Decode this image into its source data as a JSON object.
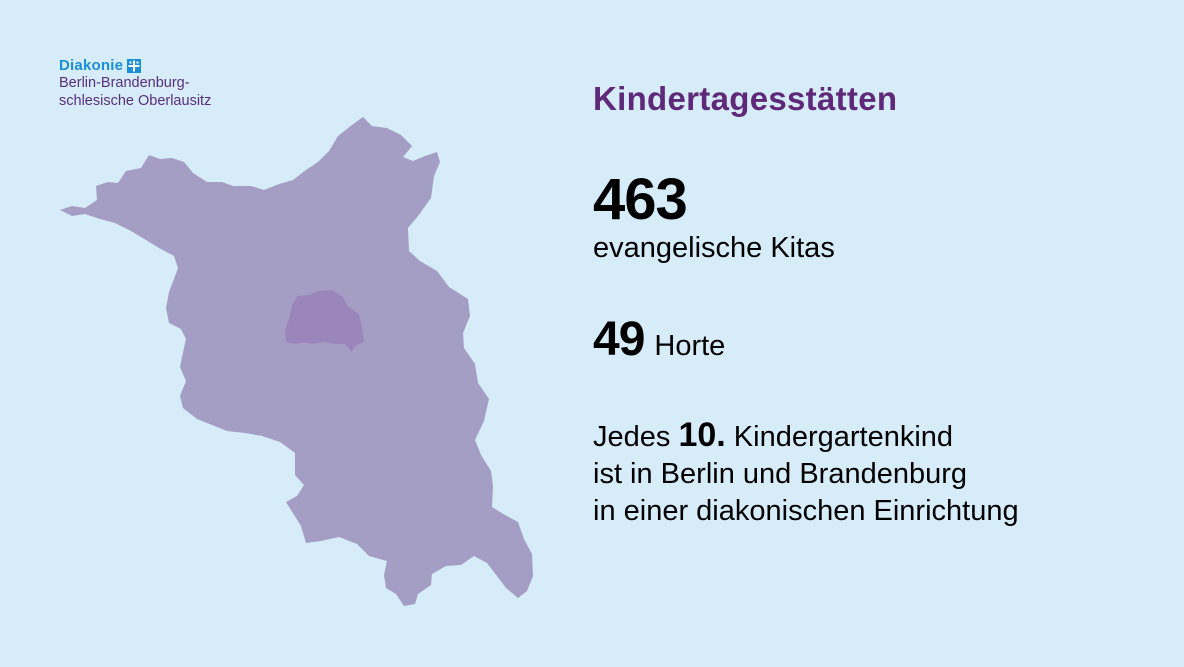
{
  "logo": {
    "brand": "Diakonie",
    "line1": "Berlin-Brandenburg-",
    "line2": "schlesische Oberlausitz",
    "brand_color": "#1a8fd6",
    "sub_color": "#5a2e7e"
  },
  "map": {
    "region_color": "#a59ec4",
    "city_color": "#9b86bb",
    "region_name": "Brandenburg",
    "city_name": "Berlin"
  },
  "heading": "Kindertagesstätten",
  "stats": {
    "kitas_number": "463",
    "kitas_label": "evangelische Kitas",
    "horte_number": "49",
    "horte_label": "Horte"
  },
  "fact": {
    "prefix": "Jedes",
    "highlight": "10.",
    "suffix": "Kindergartenkind",
    "line2": "ist in Berlin und Brandenburg",
    "line3": "in einer diakonischen Einrichtung"
  },
  "colors": {
    "background": "#d6ecf8",
    "heading": "#5f2879",
    "text": "#000000"
  }
}
